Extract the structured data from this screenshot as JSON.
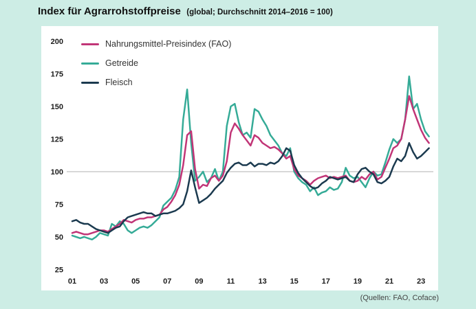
{
  "title": {
    "main": "Index für Agrarrohstoffpreise",
    "qualifier": "(global; Durchschnitt 2014–2016 = 100)"
  },
  "source": "(Quellen: FAO, Coface)",
  "colors": {
    "background": "#cdede5",
    "panel": "#ffffff",
    "reference_line": "#cccccc",
    "fao": "#c13577",
    "getreide": "#35ab97",
    "fleisch": "#1b3a4f"
  },
  "chart_data": {
    "type": "line",
    "title": "Index für Agrarrohstoffpreise",
    "subtitle": "global; Durchschnitt 2014–2016 = 100",
    "x_start": 2001,
    "x_step": 0.25,
    "xlim": [
      2001,
      2023.5
    ],
    "ylim": [
      25,
      200
    ],
    "y_ticks": [
      200,
      175,
      150,
      125,
      100,
      75,
      50,
      25
    ],
    "x_ticks": [
      {
        "label": "01",
        "year": 2001
      },
      {
        "label": "03",
        "year": 2003
      },
      {
        "label": "05",
        "year": 2005
      },
      {
        "label": "07",
        "year": 2007
      },
      {
        "label": "09",
        "year": 2009
      },
      {
        "label": "11",
        "year": 2011
      },
      {
        "label": "13",
        "year": 2013
      },
      {
        "label": "15",
        "year": 2015
      },
      {
        "label": "17",
        "year": 2017
      },
      {
        "label": "19",
        "year": 2019
      },
      {
        "label": "21",
        "year": 2021
      },
      {
        "label": "23",
        "year": 2023
      }
    ],
    "reference_line": 100,
    "grid": "single horizontal reference line at 100",
    "legend_position": "top-left inside plot",
    "series": [
      {
        "name": "Nahrungsmittel-Preisindex (FAO)",
        "color": "#c13577",
        "values": [
          53,
          54,
          53,
          52,
          52,
          53,
          54,
          55,
          55,
          54,
          56,
          58,
          60,
          63,
          62,
          61,
          63,
          64,
          64,
          65,
          65,
          66,
          67,
          71,
          73,
          77,
          82,
          90,
          105,
          128,
          131,
          102,
          87,
          90,
          89,
          95,
          97,
          93,
          97,
          108,
          130,
          137,
          133,
          128,
          124,
          120,
          128,
          126,
          122,
          120,
          118,
          119,
          117,
          114,
          110,
          112,
          102,
          97,
          95,
          93,
          90,
          93,
          95,
          96,
          97,
          95,
          96,
          95,
          96,
          97,
          93,
          92,
          93,
          96,
          94,
          98,
          100,
          94,
          96,
          103,
          110,
          118,
          120,
          125,
          140,
          158,
          148,
          140,
          132,
          126,
          122
        ]
      },
      {
        "name": "Getreide",
        "color": "#35ab97",
        "values": [
          51,
          50,
          49,
          50,
          49,
          48,
          50,
          53,
          52,
          51,
          60,
          58,
          62,
          60,
          55,
          53,
          55,
          57,
          58,
          57,
          59,
          62,
          65,
          74,
          77,
          80,
          86,
          96,
          140,
          163,
          122,
          93,
          96,
          100,
          92,
          95,
          102,
          93,
          100,
          135,
          150,
          152,
          138,
          128,
          130,
          126,
          148,
          146,
          140,
          135,
          128,
          124,
          120,
          114,
          112,
          118,
          100,
          95,
          92,
          90,
          85,
          88,
          82,
          84,
          85,
          88,
          86,
          87,
          92,
          103,
          97,
          95,
          96,
          92,
          88,
          95,
          100,
          97,
          98,
          107,
          117,
          125,
          122,
          125,
          140,
          173,
          148,
          152,
          140,
          131,
          127
        ]
      },
      {
        "name": "Fleisch",
        "color": "#1b3a4f",
        "values": [
          62,
          63,
          61,
          60,
          60,
          58,
          56,
          55,
          54,
          53,
          55,
          57,
          58,
          62,
          65,
          66,
          67,
          68,
          69,
          68,
          68,
          66,
          67,
          68,
          68,
          69,
          70,
          72,
          75,
          85,
          101,
          88,
          76,
          78,
          80,
          83,
          87,
          90,
          93,
          99,
          103,
          106,
          107,
          105,
          105,
          107,
          104,
          106,
          106,
          105,
          107,
          106,
          108,
          112,
          118,
          116,
          105,
          99,
          95,
          92,
          89,
          87,
          88,
          91,
          93,
          96,
          95,
          94,
          95,
          96,
          93,
          92,
          98,
          102,
          103,
          100,
          98,
          92,
          91,
          93,
          96,
          104,
          110,
          108,
          112,
          122,
          115,
          110,
          112,
          115,
          118
        ]
      }
    ]
  }
}
